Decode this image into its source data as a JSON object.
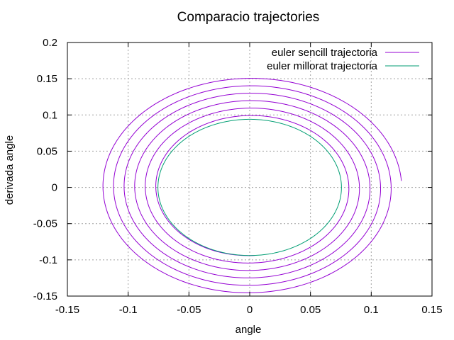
{
  "chart_data": {
    "type": "line",
    "title": "Comparacio trajectories",
    "xlabel": "angle",
    "ylabel": "derivada angle",
    "xlim": [
      -0.15,
      0.15
    ],
    "ylim": [
      -0.15,
      0.2
    ],
    "xticks": [
      -0.15,
      -0.1,
      -0.05,
      0,
      0.05,
      0.1,
      0.15
    ],
    "xtick_labels": [
      "-0.15",
      "-0.1",
      "-0.05",
      "0",
      "0.05",
      "0.1",
      "0.15"
    ],
    "yticks": [
      -0.15,
      -0.1,
      -0.05,
      0,
      0.05,
      0.1,
      0.15,
      0.2
    ],
    "ytick_labels": [
      "-0.15",
      "-0.1",
      "-0.05",
      "0",
      "0.05",
      "0.1",
      "0.15",
      "0.2"
    ],
    "grid": true,
    "legend_position": "top-right",
    "series": [
      {
        "name": "euler sencill trajectoria",
        "color": "#9400d3",
        "parametric": {
          "angle_amplitude_start": 0.125,
          "angle_amplitude_end": 0.075,
          "derivative_amplitude_start": 0.153,
          "derivative_amplitude_end": 0.094,
          "turns": 5.75,
          "start_angle": 0.125,
          "start_derivative": 0.009
        }
      },
      {
        "name": "euler millorat trajectoria",
        "color": "#009e73",
        "parametric": {
          "angle_amplitude": 0.0755,
          "derivative_amplitude": 0.094,
          "turns": 1
        }
      }
    ]
  }
}
